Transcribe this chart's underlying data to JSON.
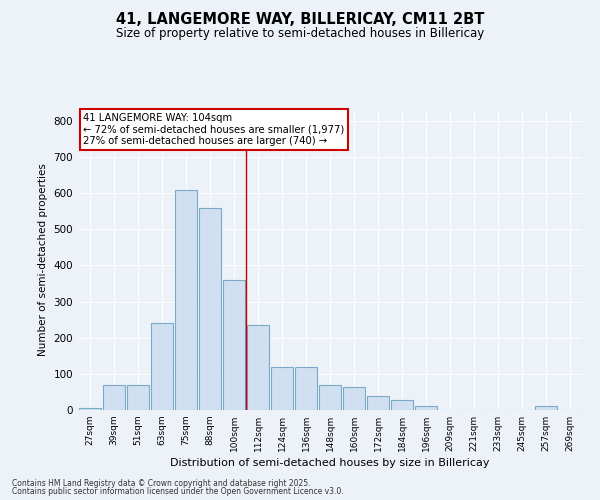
{
  "title_line1": "41, LANGEMORE WAY, BILLERICAY, CM11 2BT",
  "title_line2": "Size of property relative to semi-detached houses in Billericay",
  "xlabel": "Distribution of semi-detached houses by size in Billericay",
  "ylabel": "Number of semi-detached properties",
  "categories": [
    "27sqm",
    "39sqm",
    "51sqm",
    "63sqm",
    "75sqm",
    "88sqm",
    "100sqm",
    "112sqm",
    "124sqm",
    "136sqm",
    "148sqm",
    "160sqm",
    "172sqm",
    "184sqm",
    "196sqm",
    "209sqm",
    "221sqm",
    "233sqm",
    "245sqm",
    "257sqm",
    "269sqm"
  ],
  "values": [
    5,
    70,
    70,
    240,
    610,
    560,
    360,
    235,
    120,
    120,
    70,
    65,
    40,
    27,
    12,
    0,
    0,
    0,
    0,
    10,
    0
  ],
  "bar_color": "#d0e0f0",
  "bar_edge_color": "#7aaac8",
  "vline_x": 6.5,
  "vline_color": "#cc0000",
  "annotation_title": "41 LANGEMORE WAY: 104sqm",
  "annotation_line1": "← 72% of semi-detached houses are smaller (1,977)",
  "annotation_line2": "27% of semi-detached houses are larger (740) →",
  "annotation_box_color": "#cc0000",
  "ylim": [
    0,
    830
  ],
  "yticks": [
    0,
    100,
    200,
    300,
    400,
    500,
    600,
    700,
    800
  ],
  "background_color": "#edf2f8",
  "grid_color": "#ffffff",
  "footer_line1": "Contains HM Land Registry data © Crown copyright and database right 2025.",
  "footer_line2": "Contains public sector information licensed under the Open Government Licence v3.0."
}
